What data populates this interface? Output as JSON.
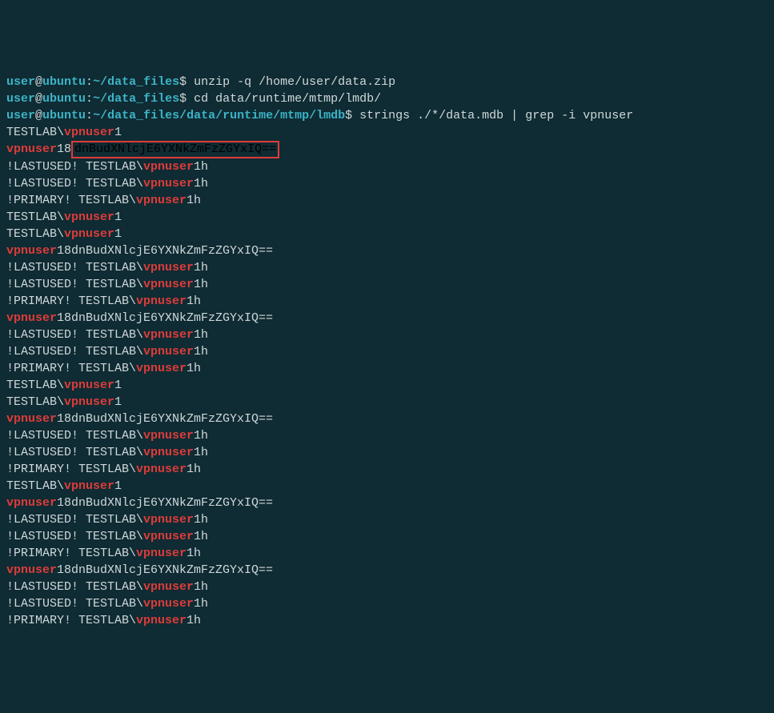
{
  "prompt": {
    "user": "user",
    "host": "ubuntu",
    "at": "@",
    "colon": ":",
    "dollar": "$"
  },
  "commands": [
    {
      "path": "~/data_files",
      "cmd": "unzip -q /home/user/data.zip"
    },
    {
      "path": "~/data_files",
      "cmd": "cd data/runtime/mtmp/lmdb/"
    },
    {
      "path": "~/data_files/data/runtime/mtmp/lmdb",
      "cmd": "strings ./*/data.mdb | grep -i vpnuser"
    }
  ],
  "output": {
    "testlabPrefix": "TESTLAB\\",
    "vpnuser": "vpnuser",
    "one": "1",
    "oneH": "1h",
    "lastused": "!LASTUSED! TESTLAB\\",
    "primary": "!PRIMARY! TESTLAB\\",
    "encodedLine": "18dnBudXNlcjE6YXNkZmFzZGYxIQ==",
    "highlighted": "dnBudXNlcjE6YXNkZmFzZGYxIQ==",
    "eighteen": "18"
  },
  "blocks": [
    {
      "type": "testlab1"
    },
    {
      "type": "encoded_highlight"
    },
    {
      "type": "lastused"
    },
    {
      "type": "lastused"
    },
    {
      "type": "primary"
    },
    {
      "type": "testlab1"
    },
    {
      "type": "testlab1"
    },
    {
      "type": "encoded"
    },
    {
      "type": "lastused"
    },
    {
      "type": "lastused"
    },
    {
      "type": "primary"
    },
    {
      "type": "encoded"
    },
    {
      "type": "lastused"
    },
    {
      "type": "lastused"
    },
    {
      "type": "primary"
    },
    {
      "type": "testlab1"
    },
    {
      "type": "testlab1"
    },
    {
      "type": "encoded"
    },
    {
      "type": "lastused"
    },
    {
      "type": "lastused"
    },
    {
      "type": "primary"
    },
    {
      "type": "testlab1"
    },
    {
      "type": "encoded"
    },
    {
      "type": "lastused"
    },
    {
      "type": "lastused"
    },
    {
      "type": "primary"
    },
    {
      "type": "encoded"
    },
    {
      "type": "lastused"
    },
    {
      "type": "lastused"
    },
    {
      "type": "primary"
    }
  ]
}
